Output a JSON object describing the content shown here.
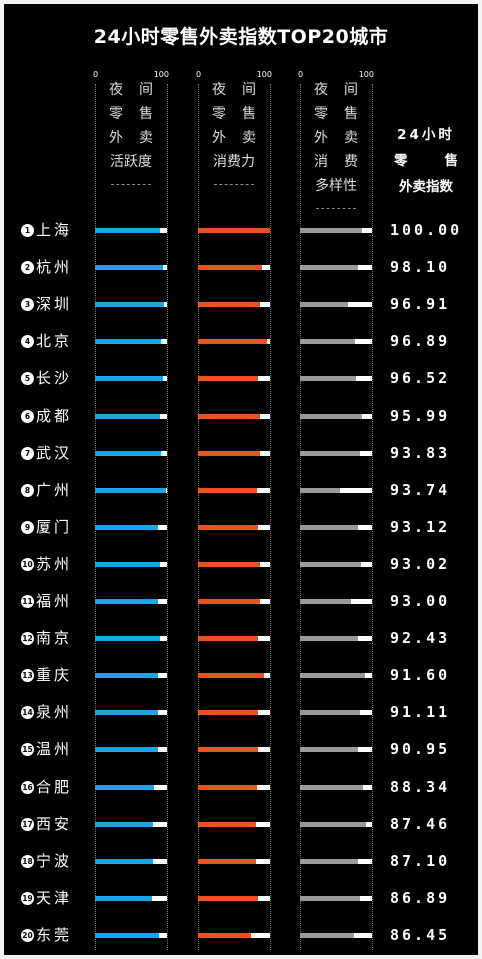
{
  "title": "24小时零售外卖指数TOP20城市",
  "scale": {
    "min": "0",
    "max": "100"
  },
  "columns": [
    {
      "lines": [
        "夜间",
        "零售",
        "外卖",
        "活跃度"
      ],
      "color": "#1aa5e8"
    },
    {
      "lines": [
        "夜间",
        "零售",
        "外卖",
        "消费力"
      ],
      "color": "#e8531f"
    },
    {
      "lines": [
        "夜间",
        "零售",
        "外卖",
        "消费",
        "多样性"
      ],
      "color": "#9a9a9a"
    }
  ],
  "index_header": [
    "24小时",
    "零",
    "售",
    "外卖指数"
  ],
  "chart_data": {
    "type": "bar",
    "title": "24小时零售外卖指数TOP20城市",
    "xlim": [
      0,
      100
    ],
    "categories": [
      "上海",
      "杭州",
      "深圳",
      "北京",
      "长沙",
      "成都",
      "武汉",
      "广州",
      "厦门",
      "苏州",
      "福州",
      "南京",
      "重庆",
      "泉州",
      "温州",
      "合肥",
      "西安",
      "宁波",
      "天津",
      "东莞"
    ],
    "ranks": [
      "1",
      "2",
      "3",
      "4",
      "5",
      "6",
      "7",
      "8",
      "9",
      "10",
      "11",
      "12",
      "13",
      "14",
      "15",
      "16",
      "17",
      "18",
      "19",
      "20"
    ],
    "series": [
      {
        "name": "夜间零售外卖活跃度",
        "values": [
          90,
          94,
          96,
          92,
          94,
          90,
          91,
          98,
          88,
          90,
          88,
          90,
          87,
          88,
          87,
          82,
          81,
          81,
          79,
          89
        ]
      },
      {
        "name": "夜间零售外卖消费力",
        "values": [
          100,
          89,
          86,
          96,
          84,
          86,
          86,
          82,
          84,
          86,
          86,
          84,
          92,
          84,
          84,
          82,
          80,
          80,
          83,
          73
        ]
      },
      {
        "name": "夜间零售外卖消费多样性",
        "values": [
          86,
          81,
          67,
          77,
          78,
          86,
          83,
          55,
          81,
          85,
          71,
          80,
          90,
          83,
          81,
          87,
          92,
          81,
          84,
          75
        ]
      }
    ],
    "index_values": [
      "100.00",
      "98.10",
      "96.91",
      "96.89",
      "96.52",
      "95.99",
      "93.83",
      "93.74",
      "93.12",
      "93.02",
      "93.00",
      "92.43",
      "91.60",
      "91.11",
      "90.95",
      "88.34",
      "87.46",
      "87.10",
      "86.89",
      "86.45"
    ]
  }
}
